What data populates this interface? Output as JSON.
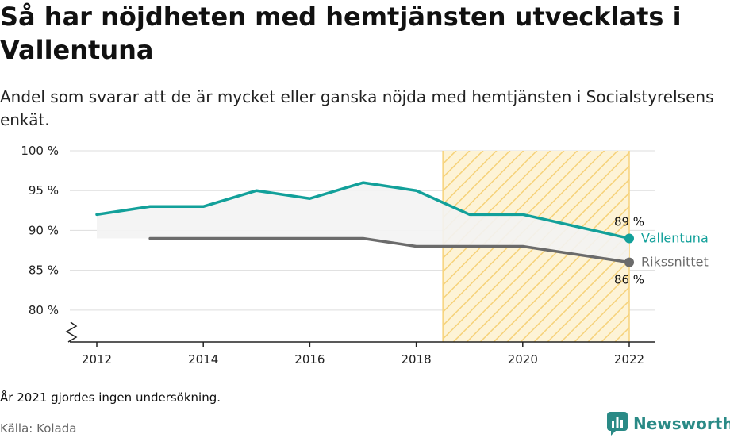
{
  "header": {
    "title": "Så har nöjdheten med hemtjänsten utvecklats i Vallentuna",
    "subtitle": "Andel som svarar att de är mycket eller ganska nöjda med hemtjänsten i Socialstyrelsens enkät."
  },
  "footer": {
    "note": "År 2021 gjordes ingen undersökning.",
    "source": "Källa: Kolada",
    "brand": "Newsworthy",
    "brand_icon": "newsworthy-logo-icon"
  },
  "colors": {
    "vallentuna": "#12a09a",
    "riks": "#6b6b6b",
    "highlight_fill": "#f6d27a",
    "band_fill": "#f3f3f3",
    "grid": "#dddddd",
    "axis": "#222222"
  },
  "chart_data": {
    "type": "line",
    "title": "",
    "xlabel": "",
    "ylabel": "",
    "ylim": [
      76,
      100
    ],
    "xlim": [
      2011.5,
      2022.5
    ],
    "yticks": [
      80,
      85,
      90,
      95,
      100
    ],
    "ytick_labels": [
      "80 %",
      "85 %",
      "90 %",
      "95 %",
      "100 %"
    ],
    "xticks": [
      2012,
      2014,
      2016,
      2018,
      2020,
      2022
    ],
    "xtick_labels": [
      "2012",
      "2014",
      "2016",
      "2018",
      "2020",
      "2022"
    ],
    "grid": true,
    "axis_break": true,
    "highlight_range": [
      2018.5,
      2022
    ],
    "series": [
      {
        "name": "Vallentuna",
        "x": [
          2012,
          2013,
          2014,
          2015,
          2016,
          2017,
          2018,
          2019,
          2020,
          2022
        ],
        "values": [
          92,
          93,
          93,
          95,
          94,
          96,
          95,
          92,
          92,
          89
        ],
        "end_label": "89 %"
      },
      {
        "name": "Rikssnittet",
        "x": [
          2013,
          2014,
          2015,
          2016,
          2017,
          2018,
          2019,
          2020,
          2022
        ],
        "values": [
          89,
          89,
          89,
          89,
          89,
          88,
          88,
          88,
          86
        ],
        "end_label": "86 %"
      }
    ]
  }
}
